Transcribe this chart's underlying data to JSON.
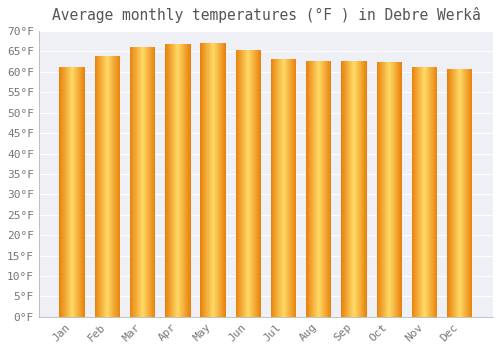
{
  "title": "Average monthly temperatures (°F ) in Debre Werkâ",
  "months": [
    "Jan",
    "Feb",
    "Mar",
    "Apr",
    "May",
    "Jun",
    "Jul",
    "Aug",
    "Sep",
    "Oct",
    "Nov",
    "Dec"
  ],
  "values": [
    61.2,
    64.0,
    66.0,
    66.9,
    67.0,
    65.3,
    63.1,
    62.6,
    62.6,
    62.4,
    61.2,
    60.6
  ],
  "bar_color_center": "#FFD966",
  "bar_color_edge": "#E8820C",
  "plot_bg_color": "#EEF0F5",
  "background_color": "#FFFFFF",
  "grid_color": "#FFFFFF",
  "ylim": [
    0,
    70
  ],
  "ytick_step": 5,
  "bar_width": 0.72,
  "title_fontsize": 10.5,
  "tick_fontsize": 8,
  "tick_label_color": "#777777",
  "title_color": "#555555",
  "font_family": "monospace"
}
